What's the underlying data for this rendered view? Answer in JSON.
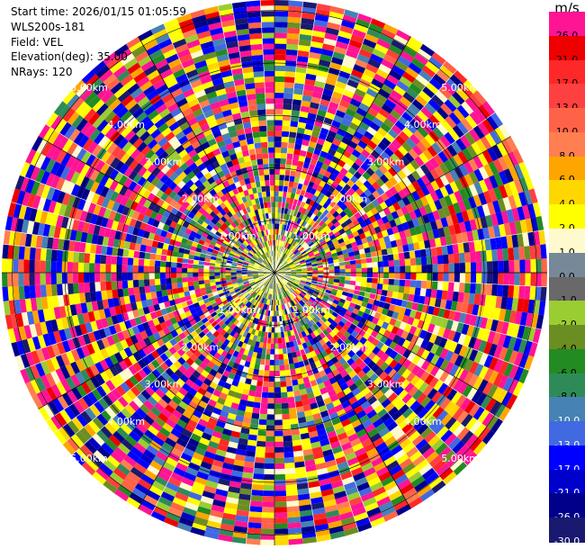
{
  "info": {
    "start_time": "Start time: 2026/01/15 01:05:59",
    "instrument": "WLS200s-181",
    "field": "Field: VEL",
    "elevation": "Elevation(deg): 35.00",
    "nrays": "NRays: 120"
  },
  "colorbar": {
    "unit": "m/s",
    "levels": [
      {
        "label": "26.0",
        "color": "#ff1493"
      },
      {
        "label": "21.0",
        "color": "#ee0000"
      },
      {
        "label": "17.0",
        "color": "#ff2828"
      },
      {
        "label": "13.0",
        "color": "#ff4040"
      },
      {
        "label": "10.0",
        "color": "#ff6347"
      },
      {
        "label": "8.0",
        "color": "#ff7f50"
      },
      {
        "label": "6.0",
        "color": "#ffa500"
      },
      {
        "label": "4.0",
        "color": "#ffd700"
      },
      {
        "label": "2.0",
        "color": "#ffff00"
      },
      {
        "label": "1.0",
        "color": "#fffacd"
      },
      {
        "label": "0.0",
        "color": "#778899"
      },
      {
        "label": "-1.0",
        "color": "#696969"
      },
      {
        "label": "-2.0",
        "color": "#9acd32"
      },
      {
        "label": "-4.0",
        "color": "#6b8e23"
      },
      {
        "label": "-6.0",
        "color": "#228b22"
      },
      {
        "label": "-8.0",
        "color": "#2e8b57"
      },
      {
        "label": "-10.0",
        "color": "#4682b4"
      },
      {
        "label": "-13.0",
        "color": "#4169e1"
      },
      {
        "label": "-17.0",
        "color": "#0000ff"
      },
      {
        "label": "-21.0",
        "color": "#0000cd"
      },
      {
        "label": "-26.0",
        "color": "#00008b"
      },
      {
        "label": "-30.0",
        "color": "#191970"
      }
    ]
  },
  "chart_data": {
    "type": "heatmap",
    "projection": "polar (PPI)",
    "field": "VEL",
    "units": "m/s",
    "elevation_deg": 35.0,
    "nrays": 120,
    "range_rings_km": [
      1.0,
      2.0,
      3.0,
      4.0,
      5.0
    ],
    "ring_labels": [
      "1.00km",
      "2.00km",
      "3.00km",
      "4.00km",
      "5.00km"
    ],
    "max_range_km": 5.2,
    "spoke_azimuths_deg": [
      0,
      30,
      60,
      90,
      120,
      150,
      180,
      210,
      240,
      270,
      300,
      330
    ],
    "range_gates_per_ray": 50,
    "pattern": "centre out to about 0.5 km dominated by 0 to 2 m/s (grey, yellow, green); beyond that, speckled noise across the full -30 to 26 m/s scale",
    "colorbar_range": [
      -30.0,
      26.0
    ],
    "legend_position": "right"
  }
}
